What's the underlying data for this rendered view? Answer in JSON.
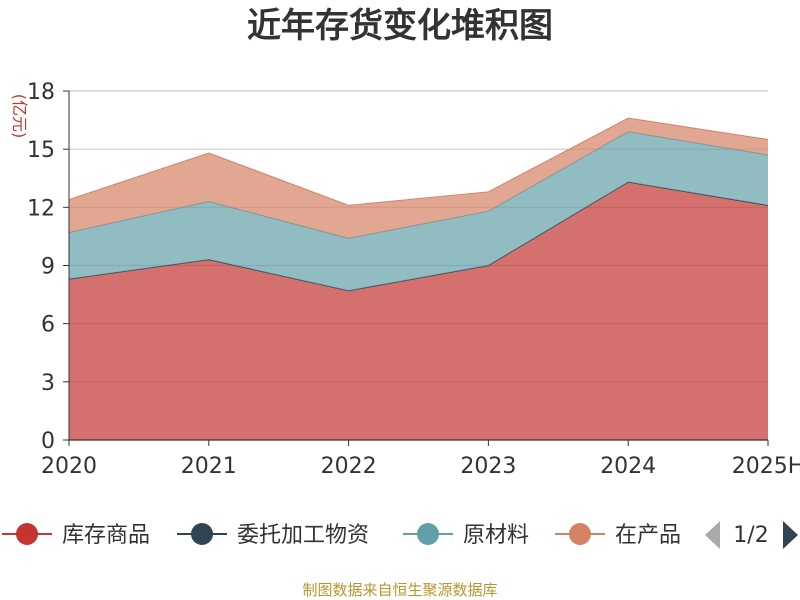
{
  "chart_data": {
    "type": "area",
    "stacked": true,
    "title": "近年存货变化堆积图",
    "ylabel": "(亿元)",
    "xlabel": "",
    "categories": [
      "2020",
      "2021",
      "2022",
      "2023",
      "2024",
      "2025H"
    ],
    "ylim": [
      0,
      18
    ],
    "yticks": [
      0,
      3,
      6,
      9,
      12,
      15,
      18
    ],
    "grid": true,
    "legend_position": "bottom",
    "series": [
      {
        "name": "库存商品",
        "color": "#c23531",
        "values": [
          8.3,
          9.3,
          7.7,
          9.0,
          13.3,
          12.1
        ]
      },
      {
        "name": "委托加工物资",
        "color": "#2f4554",
        "values": [
          0.0,
          0.0,
          0.0,
          0.0,
          0.0,
          0.0
        ]
      },
      {
        "name": "原材料",
        "color": "#61a0a8",
        "values": [
          2.4,
          3.0,
          2.7,
          2.8,
          2.6,
          2.6
        ]
      },
      {
        "name": "在产品",
        "color": "#d48265",
        "values": [
          1.7,
          2.5,
          1.7,
          1.0,
          0.7,
          0.8
        ]
      }
    ]
  },
  "legend": {
    "items": [
      "库存商品",
      "委托加工物资",
      "原材料",
      "在产品"
    ],
    "visible_last": "在产品",
    "page_indicator": "1/2"
  },
  "source_note": "制图数据来自恒生聚源数据库"
}
